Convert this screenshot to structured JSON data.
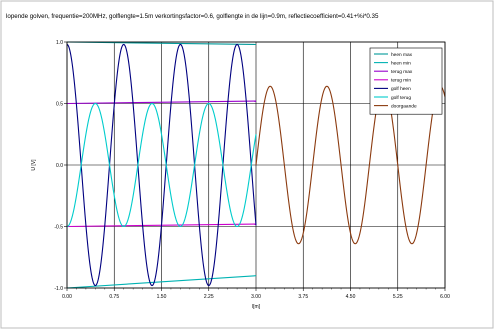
{
  "chart_data": {
    "type": "line",
    "title": "lopende golven, frequentie=200MHz, golflengte=1.5m verkortingsfactor=0.6, golflengte in de lijn=0.9m, reflectiecoefficient=0.41+%i*0.35",
    "xlabel": "l[m]",
    "ylabel": "U [V]",
    "xlim": [
      0,
      6
    ],
    "ylim": [
      -1,
      1
    ],
    "x_ticks": [
      "0.00",
      "0.75",
      "1.50",
      "2.25",
      "3.00",
      "3.75",
      "4.50",
      "5.25",
      "6.00"
    ],
    "y_ticks": [
      "-1.0",
      "-0.5",
      "0.0",
      "0.5",
      "1.0"
    ],
    "grid": true,
    "legend_position": "top-right",
    "params": {
      "wavelength_line_m": 0.9,
      "line_end_m": 3.0,
      "wavelength_free_m": 1.5,
      "transmitted_amplitude": 0.64,
      "incident_amplitude": 1.0,
      "reflected_amplitude": 0.5
    },
    "series": [
      {
        "name": "heen max",
        "color": "#009999",
        "x": [
          0,
          3
        ],
        "y": [
          1.0,
          0.98
        ]
      },
      {
        "name": "heen min",
        "color": "#00b3b3",
        "x": [
          0,
          3
        ],
        "y": [
          -1.0,
          -0.9
        ]
      },
      {
        "name": "terug max",
        "color": "#9900cc",
        "x": [
          0,
          3
        ],
        "y": [
          0.5,
          0.52
        ]
      },
      {
        "name": "terug min",
        "color": "#cc00cc",
        "x": [
          0,
          3
        ],
        "y": [
          -0.5,
          -0.48
        ]
      },
      {
        "name": "golf heen",
        "color": "#000080",
        "x_range": [
          0,
          3
        ],
        "amplitude": 0.98
      },
      {
        "name": "golf terug",
        "color": "#00cccc",
        "x_range": [
          0,
          3
        ],
        "amplitude": 0.5
      },
      {
        "name": "doorgaande",
        "color": "#8b3a0f",
        "x_range": [
          3,
          6
        ],
        "amplitude": 0.64
      }
    ]
  }
}
